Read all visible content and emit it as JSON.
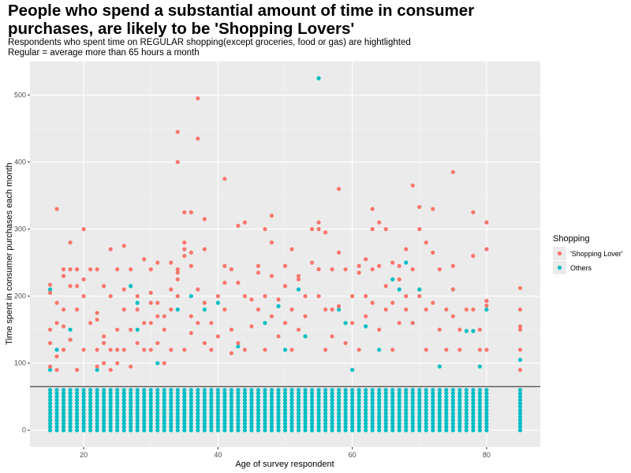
{
  "colors": {
    "panel": "#ebebeb",
    "grid_major": "#ffffff",
    "grid_minor": "#f5f5f5",
    "shopping_lover": "#F8766D",
    "others": "#00BFC4",
    "reference_line": "#555555"
  },
  "chart_data": {
    "type": "scatter",
    "title": "People who spend a substantial amount of time in consumer purchases, are likely to be 'Shopping Lovers'",
    "subtitle_lines": [
      "Respondents who spent time on REGULAR shopping(except groceries, food or gas) are hightlighted",
      "Regular = average more than 65 hours a month"
    ],
    "xlabel": "Age of survey respondent",
    "ylabel": "Time spent in consumer purchases each month",
    "xlim": [
      12,
      88
    ],
    "ylim": [
      -25,
      550
    ],
    "x_ticks": [
      20,
      40,
      60,
      80
    ],
    "y_ticks": [
      0,
      100,
      200,
      300,
      400,
      500
    ],
    "reference_line_y": 65,
    "grid": true,
    "legend": {
      "title": "Shopping",
      "position": "right",
      "entries": [
        "'Shopping Lover'",
        "Others"
      ]
    },
    "series": [
      {
        "name": "'Shopping Lover'",
        "points": [
          [
            15,
            95
          ],
          [
            15,
            130
          ],
          [
            15,
            150
          ],
          [
            15,
            205
          ],
          [
            15,
            217
          ],
          [
            16,
            90
          ],
          [
            16,
            110
          ],
          [
            16,
            330
          ],
          [
            16,
            190
          ],
          [
            16,
            160
          ],
          [
            17,
            120
          ],
          [
            17,
            230
          ],
          [
            17,
            240
          ],
          [
            17,
            180
          ],
          [
            17,
            155
          ],
          [
            18,
            280
          ],
          [
            18,
            215
          ],
          [
            18,
            240
          ],
          [
            18,
            135
          ],
          [
            19,
            90
          ],
          [
            19,
            180
          ],
          [
            19,
            215
          ],
          [
            19,
            240
          ],
          [
            20,
            300
          ],
          [
            20,
            225
          ],
          [
            20,
            120
          ],
          [
            20,
            200
          ],
          [
            21,
            240
          ],
          [
            21,
            160
          ],
          [
            22,
            95
          ],
          [
            22,
            175
          ],
          [
            22,
            165
          ],
          [
            22,
            120
          ],
          [
            22,
            240
          ],
          [
            23,
            215
          ],
          [
            23,
            130
          ],
          [
            23,
            100
          ],
          [
            23,
            140
          ],
          [
            24,
            270
          ],
          [
            24,
            200
          ],
          [
            24,
            120
          ],
          [
            24,
            90
          ],
          [
            25,
            240
          ],
          [
            25,
            150
          ],
          [
            25,
            120
          ],
          [
            25,
            100
          ],
          [
            26,
            275
          ],
          [
            26,
            210
          ],
          [
            26,
            180
          ],
          [
            26,
            120
          ],
          [
            27,
            240
          ],
          [
            27,
            150
          ],
          [
            27,
            95
          ],
          [
            28,
            130
          ],
          [
            28,
            200
          ],
          [
            28,
            180
          ],
          [
            29,
            255
          ],
          [
            29,
            160
          ],
          [
            29,
            120
          ],
          [
            30,
            205
          ],
          [
            30,
            160
          ],
          [
            30,
            190
          ],
          [
            30,
            240
          ],
          [
            30,
            120
          ],
          [
            31,
            250
          ],
          [
            31,
            190
          ],
          [
            31,
            170
          ],
          [
            31,
            130
          ],
          [
            32,
            170
          ],
          [
            32,
            150
          ],
          [
            32,
            100
          ],
          [
            33,
            250
          ],
          [
            33,
            210
          ],
          [
            33,
            180
          ],
          [
            33,
            120
          ],
          [
            34,
            445
          ],
          [
            34,
            400
          ],
          [
            34,
            240
          ],
          [
            34,
            235
          ],
          [
            34,
            225
          ],
          [
            34,
            200
          ],
          [
            35,
            325
          ],
          [
            35,
            280
          ],
          [
            35,
            270
          ],
          [
            35,
            260
          ],
          [
            35,
            120
          ],
          [
            36,
            325
          ],
          [
            36,
            265
          ],
          [
            36,
            245
          ],
          [
            36,
            170
          ],
          [
            36,
            145
          ],
          [
            37,
            495
          ],
          [
            37,
            435
          ],
          [
            37,
            210
          ],
          [
            37,
            160
          ],
          [
            38,
            315
          ],
          [
            38,
            270
          ],
          [
            38,
            190
          ],
          [
            38,
            130
          ],
          [
            39,
            160
          ],
          [
            39,
            120
          ],
          [
            40,
            200
          ],
          [
            40,
            140
          ],
          [
            41,
            375
          ],
          [
            41,
            245
          ],
          [
            41,
            220
          ],
          [
            41,
            180
          ],
          [
            42,
            240
          ],
          [
            42,
            150
          ],
          [
            42,
            115
          ],
          [
            43,
            305
          ],
          [
            43,
            220
          ],
          [
            43,
            130
          ],
          [
            44,
            310
          ],
          [
            44,
            200
          ],
          [
            44,
            120
          ],
          [
            45,
            195
          ],
          [
            45,
            155
          ],
          [
            46,
            245
          ],
          [
            46,
            235
          ],
          [
            46,
            180
          ],
          [
            47,
            300
          ],
          [
            47,
            200
          ],
          [
            47,
            120
          ],
          [
            48,
            320
          ],
          [
            48,
            280
          ],
          [
            48,
            230
          ],
          [
            48,
            170
          ],
          [
            49,
            195
          ],
          [
            49,
            140
          ],
          [
            50,
            245
          ],
          [
            50,
            215
          ],
          [
            50,
            160
          ],
          [
            51,
            270
          ],
          [
            51,
            180
          ],
          [
            51,
            120
          ],
          [
            52,
            230
          ],
          [
            52,
            225
          ],
          [
            52,
            150
          ],
          [
            53,
            170
          ],
          [
            53,
            200
          ],
          [
            54,
            300
          ],
          [
            54,
            250
          ],
          [
            55,
            310
          ],
          [
            55,
            300
          ],
          [
            55,
            240
          ],
          [
            55,
            200
          ],
          [
            56,
            295
          ],
          [
            56,
            180
          ],
          [
            56,
            120
          ],
          [
            57,
            240
          ],
          [
            57,
            180
          ],
          [
            57,
            140
          ],
          [
            58,
            360
          ],
          [
            58,
            265
          ],
          [
            58,
            185
          ],
          [
            59,
            240
          ],
          [
            59,
            130
          ],
          [
            60,
            200
          ],
          [
            60,
            160
          ],
          [
            61,
            245
          ],
          [
            61,
            235
          ],
          [
            61,
            120
          ],
          [
            62,
            255
          ],
          [
            62,
            200
          ],
          [
            62,
            170
          ],
          [
            63,
            330
          ],
          [
            63,
            300
          ],
          [
            63,
            240
          ],
          [
            63,
            190
          ],
          [
            64,
            310
          ],
          [
            64,
            245
          ],
          [
            64,
            150
          ],
          [
            65,
            300
          ],
          [
            65,
            215
          ],
          [
            65,
            180
          ],
          [
            66,
            250
          ],
          [
            66,
            190
          ],
          [
            66,
            120
          ],
          [
            67,
            245
          ],
          [
            67,
            225
          ],
          [
            67,
            160
          ],
          [
            68,
            270
          ],
          [
            68,
            200
          ],
          [
            68,
            180
          ],
          [
            69,
            365
          ],
          [
            69,
            240
          ],
          [
            69,
            160
          ],
          [
            70,
            333
          ],
          [
            70,
            300
          ],
          [
            70,
            200
          ],
          [
            71,
            280
          ],
          [
            71,
            180
          ],
          [
            71,
            120
          ],
          [
            72,
            330
          ],
          [
            72,
            265
          ],
          [
            72,
            190
          ],
          [
            73,
            240
          ],
          [
            73,
            150
          ],
          [
            74,
            180
          ],
          [
            74,
            120
          ],
          [
            75,
            385
          ],
          [
            75,
            245
          ],
          [
            75,
            210
          ],
          [
            75,
            170
          ],
          [
            76,
            150
          ],
          [
            76,
            120
          ],
          [
            77,
            180
          ],
          [
            78,
            325
          ],
          [
            78,
            260
          ],
          [
            78,
            180
          ],
          [
            79,
            150
          ],
          [
            79,
            120
          ],
          [
            80,
            310
          ],
          [
            80,
            270
          ],
          [
            80,
            193
          ],
          [
            80,
            186
          ],
          [
            80,
            120
          ],
          [
            85,
            212
          ],
          [
            85,
            180
          ],
          [
            85,
            155
          ],
          [
            85,
            150
          ],
          [
            85,
            120
          ],
          [
            85,
            90
          ]
        ]
      },
      {
        "name": "Others",
        "points": [
          [
            15,
            210
          ],
          [
            15,
            90
          ],
          [
            16,
            120
          ],
          [
            18,
            150
          ],
          [
            18,
            135
          ],
          [
            22,
            90
          ],
          [
            27,
            215
          ],
          [
            28,
            190
          ],
          [
            28,
            150
          ],
          [
            31,
            100
          ],
          [
            34,
            180
          ],
          [
            36,
            200
          ],
          [
            38,
            180
          ],
          [
            40,
            190
          ],
          [
            43,
            125
          ],
          [
            47,
            160
          ],
          [
            49,
            185
          ],
          [
            50,
            120
          ],
          [
            52,
            210
          ],
          [
            53,
            140
          ],
          [
            55,
            525
          ],
          [
            58,
            180
          ],
          [
            59,
            160
          ],
          [
            60,
            90
          ],
          [
            62,
            155
          ],
          [
            64,
            120
          ],
          [
            66,
            225
          ],
          [
            67,
            210
          ],
          [
            68,
            250
          ],
          [
            69,
            160
          ],
          [
            70,
            210
          ],
          [
            73,
            95
          ],
          [
            75,
            210
          ],
          [
            77,
            148
          ],
          [
            78,
            148
          ],
          [
            79,
            95
          ],
          [
            80,
            180
          ],
          [
            85,
            105
          ]
        ]
      }
    ]
  }
}
